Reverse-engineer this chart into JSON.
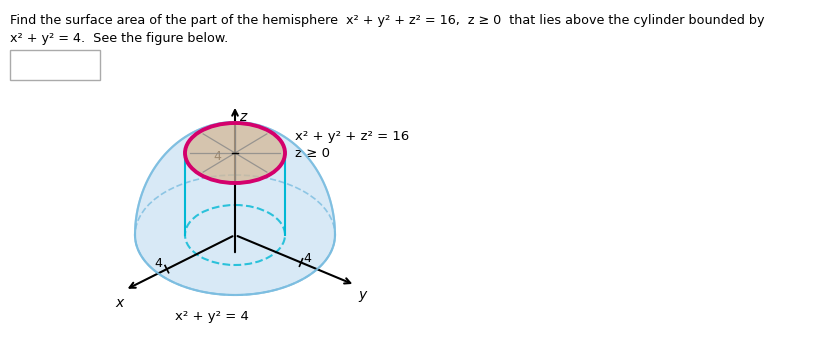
{
  "title_line1": "Find the surface area of the part of the hemisphere  x² + y² + z² = 16,  z ≥ 0  that lies above the cylinder bounded by",
  "title_line2": "x² + y² = 4.  See the figure below.",
  "eq_sphere": "x² + y² + z² = 16",
  "eq_sphere2": "z ≥ 0",
  "eq_cylinder": "x² + y² = 4",
  "label_z": "z",
  "label_x": "x",
  "label_y": "y",
  "label_4_top": "4",
  "label_4_x": "4",
  "label_4_y": "4",
  "bg_color": "#ffffff",
  "text_color": "#000000",
  "sphere_fill": "#b8d8f0",
  "sphere_edge": "#7bbde0",
  "sphere_alpha": 0.55,
  "disk_fill": "#d4b896",
  "disk_alpha": 0.75,
  "cyl_rim_color": "#00b8d4",
  "pink_circle_color": "#d4006c",
  "axis_color": "#000000",
  "gray_line_color": "#888888",
  "fig_width": 8.13,
  "fig_height": 3.42,
  "dpi": 100
}
